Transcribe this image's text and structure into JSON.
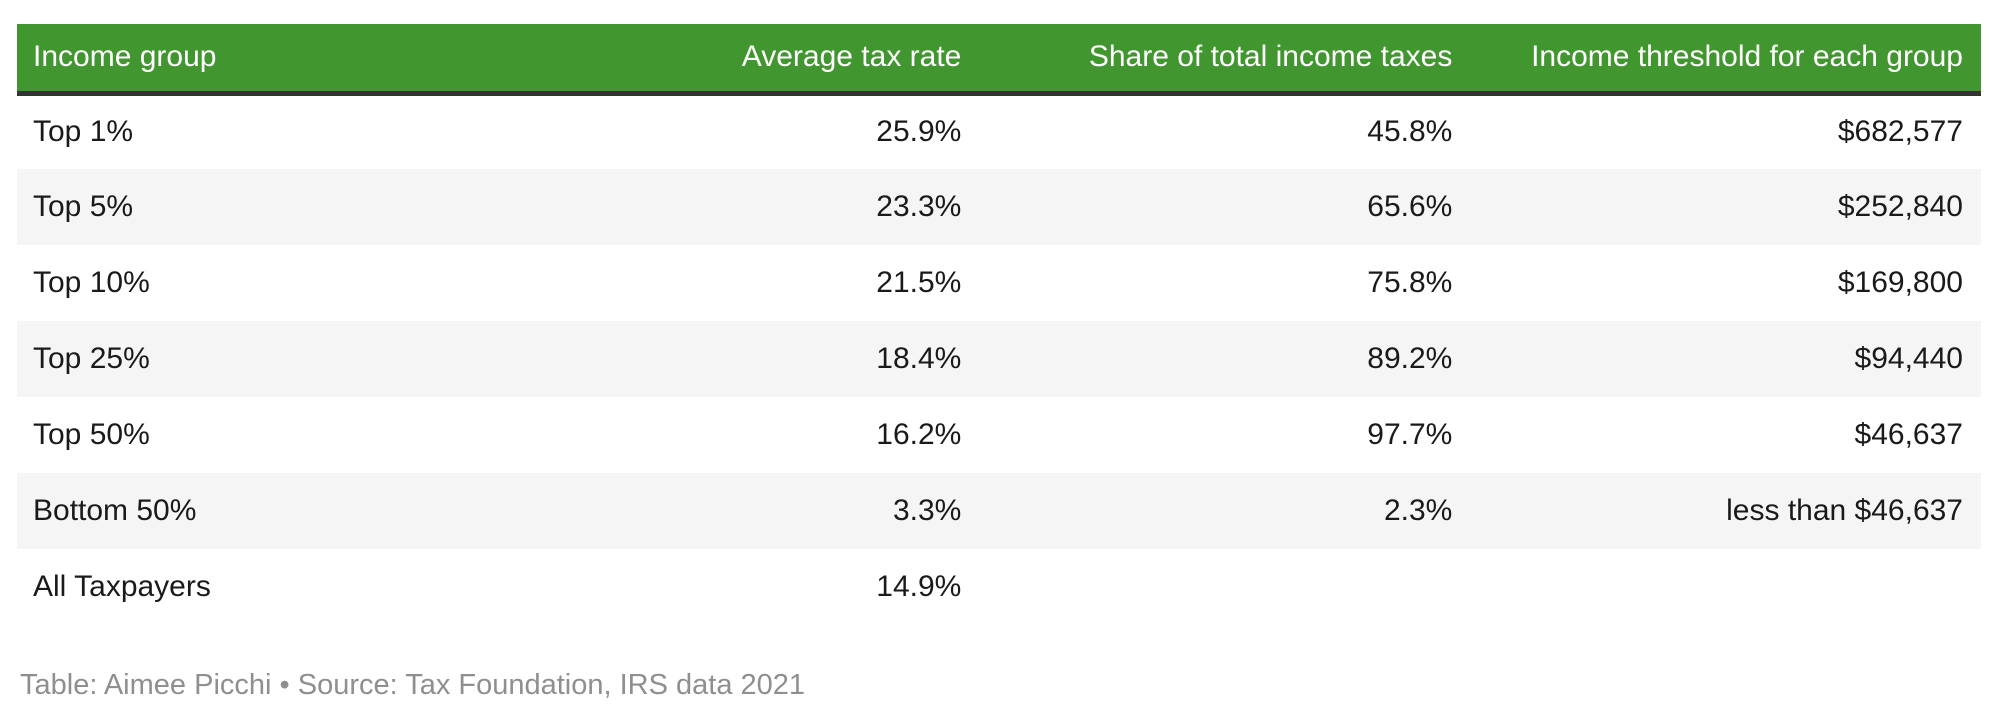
{
  "colors": {
    "header_bg": "#42962f",
    "header_text": "#ffffff",
    "header_border": "#333333",
    "stripe": "#f5f5f5",
    "body_text": "#1a1a1a",
    "footer_text": "#8f8f8f",
    "page_bg": "#ffffff"
  },
  "footer": {
    "credit": "Table: Aimee Picchi • Source: Tax Foundation, IRS data 2021"
  },
  "chart_data": {
    "type": "table",
    "title": "",
    "columns": [
      {
        "label": "Income group",
        "align": "left"
      },
      {
        "label": "Average tax rate",
        "align": "right"
      },
      {
        "label": "Share of total income taxes",
        "align": "right"
      },
      {
        "label": "Income threshold for each group",
        "align": "right"
      }
    ],
    "rows": [
      [
        "Top 1%",
        "25.9%",
        "45.8%",
        "$682,577"
      ],
      [
        "Top 5%",
        "23.3%",
        "65.6%",
        "$252,840"
      ],
      [
        "Top 10%",
        "21.5%",
        "75.8%",
        "$169,800"
      ],
      [
        "Top 25%",
        "18.4%",
        "89.2%",
        "$94,440"
      ],
      [
        "Top 50%",
        "16.2%",
        "97.7%",
        "$46,637"
      ],
      [
        "Bottom 50%",
        "3.3%",
        "2.3%",
        "less than $46,637"
      ],
      [
        "All Taxpayers",
        "14.9%",
        "",
        ""
      ]
    ],
    "layout_hints": {
      "striped_rows": true,
      "stripe_starts_on_second_row": true,
      "header_style": "green background, white text, dark bottom rule",
      "value_columns_right_aligned": true
    }
  }
}
